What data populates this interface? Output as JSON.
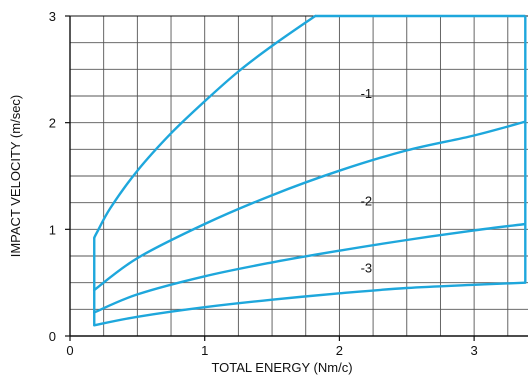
{
  "chart_data": {
    "type": "line",
    "title": "",
    "xlabel": "TOTAL ENERGY (Nm/c)",
    "ylabel": "IMPACT VELOCITY (m/sec)",
    "xlim": [
      0,
      3.4
    ],
    "ylim": [
      0,
      3
    ],
    "x_ticks": [
      "0",
      "1",
      "2",
      "3"
    ],
    "y_ticks": [
      "0",
      "1",
      "2",
      "3"
    ],
    "grid": true,
    "line_color": "#1ea7dc",
    "series": [
      {
        "name": "-1",
        "label_at": [
          2.2,
          2.28
        ],
        "points": [
          [
            0.18,
            0.92
          ],
          [
            0.2,
            0.97
          ],
          [
            0.3,
            1.2
          ],
          [
            0.5,
            1.55
          ],
          [
            0.75,
            1.9
          ],
          [
            1.0,
            2.2
          ],
          [
            1.25,
            2.48
          ],
          [
            1.5,
            2.72
          ],
          [
            1.82,
            3.0
          ]
        ]
      },
      {
        "name": "-2",
        "label_at": [
          2.2,
          1.27
        ],
        "points": [
          [
            0.18,
            0.43
          ],
          [
            0.5,
            0.73
          ],
          [
            1.0,
            1.05
          ],
          [
            1.5,
            1.32
          ],
          [
            2.0,
            1.55
          ],
          [
            2.5,
            1.74
          ],
          [
            3.0,
            1.88
          ],
          [
            3.38,
            2.01
          ]
        ]
      },
      {
        "name": "-3",
        "label_at": [
          2.2,
          0.64
        ],
        "points": [
          [
            0.18,
            0.22
          ],
          [
            0.5,
            0.39
          ],
          [
            1.0,
            0.56
          ],
          [
            1.5,
            0.69
          ],
          [
            2.0,
            0.8
          ],
          [
            2.5,
            0.9
          ],
          [
            3.0,
            0.99
          ],
          [
            3.38,
            1.05
          ]
        ]
      },
      {
        "name": "",
        "points": [
          [
            0.18,
            0.1
          ],
          [
            0.5,
            0.18
          ],
          [
            1.0,
            0.27
          ],
          [
            1.5,
            0.34
          ],
          [
            2.0,
            0.4
          ],
          [
            2.5,
            0.45
          ],
          [
            3.0,
            0.48
          ],
          [
            3.38,
            0.5
          ]
        ]
      }
    ],
    "envelope": {
      "x_min": 0.18,
      "x_max": 3.38,
      "y_min_at_left": 0.1,
      "y_top": 3.0,
      "y_max_at_left": 0.92
    }
  }
}
